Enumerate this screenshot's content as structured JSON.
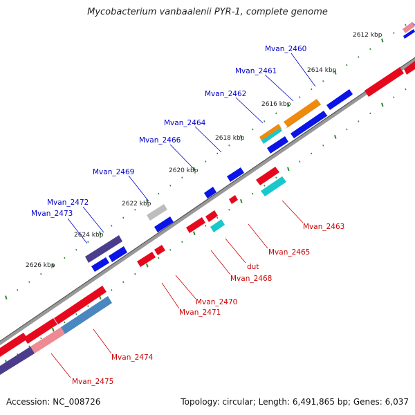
{
  "title": "Mycobacterium vanbaalenii PYR-1, complete genome",
  "footer": {
    "accession": "Accession: NC_008726",
    "topology": "Topology: circular; Length: 6,491,865 bp; Genes: 6,037"
  },
  "colors": {
    "blue": "#0a14e6",
    "red": "#e6091e",
    "orange": "#f08a0c",
    "cyan": "#19c8cc",
    "purple": "#4b3d8c",
    "gray": "#bdbdbd",
    "steel": "#4a86c0",
    "pink": "#ee8a92",
    "tick": "#2a8a2a",
    "backbone": "#888888",
    "label_blue": "#0000cc",
    "label_red": "#cc0000"
  },
  "kbp_labels": [
    "2612 kbp",
    "2614 kbp",
    "2616 kbp",
    "2618 kbp",
    "2620 kbp",
    "2622 kbp",
    "2624 kbp",
    "2626 kbp"
  ],
  "gene_labels_forward": [
    "Mvan_2460",
    "Mvan_2461",
    "Mvan_2462",
    "Mvan_2464",
    "Mvan_2466",
    "Mvan_2469",
    "Mvan_2472",
    "Mvan_2473"
  ],
  "gene_labels_reverse": [
    "Mvan_2463",
    "Mvan_2465",
    "dut",
    "Mvan_2468",
    "Mvan_2470",
    "Mvan_2471",
    "Mvan_2474",
    "Mvan_2475"
  ]
}
